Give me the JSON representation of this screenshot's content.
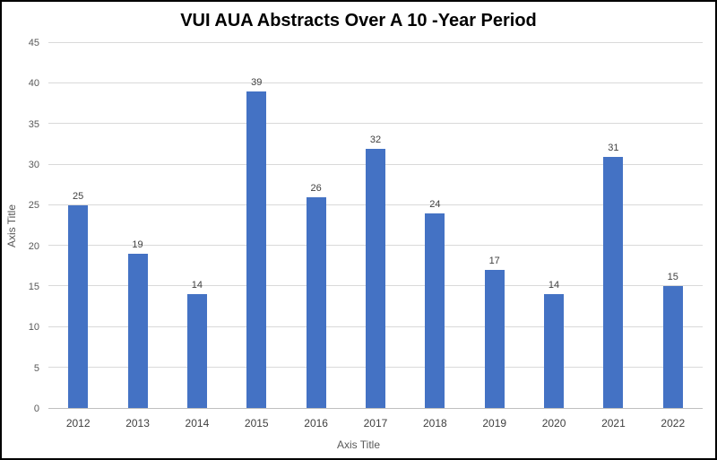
{
  "chart_data": {
    "type": "bar",
    "title": "VUI AUA Abstracts Over A 10 -Year Period",
    "categories": [
      "2012",
      "2013",
      "2014",
      "2015",
      "2016",
      "2017",
      "2018",
      "2019",
      "2020",
      "2021",
      "2022"
    ],
    "values": [
      25,
      19,
      14,
      39,
      26,
      32,
      24,
      17,
      14,
      31,
      15
    ],
    "xlabel": "Axis Title",
    "ylabel": "Axis Title",
    "ylim": [
      0,
      45
    ],
    "yticks": [
      0,
      5,
      10,
      15,
      20,
      25,
      30,
      35,
      40,
      45
    ],
    "bar_color": "#4472C4",
    "gridline_color": "#d9d9d9",
    "grid": true,
    "legend_position": "none"
  }
}
